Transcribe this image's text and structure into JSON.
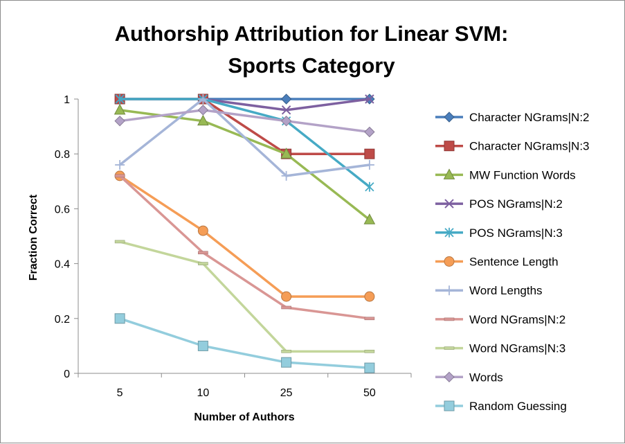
{
  "chart_data": {
    "type": "line",
    "title_lines": [
      "Authorship Attribution for Linear SVM:",
      "Sports Category"
    ],
    "xlabel": "Number of Authors",
    "ylabel": "Fraction Correct",
    "categories": [
      "5",
      "10",
      "25",
      "50"
    ],
    "ylim": [
      0,
      1
    ],
    "yticks": [
      0,
      0.2,
      0.4,
      0.6,
      0.8,
      1
    ],
    "ytick_labels": [
      "0",
      "0.2",
      "0.4",
      "0.6",
      "0.8",
      "1"
    ],
    "grid": false,
    "legend_position": "right",
    "series": [
      {
        "name": "Character NGrams|N:2",
        "values": [
          1,
          1,
          1,
          1
        ],
        "color": "#4a7ebb",
        "marker": "diamond"
      },
      {
        "name": "Character NGrams|N:3",
        "values": [
          1,
          1,
          0.8,
          0.8
        ],
        "color": "#be4b48",
        "marker": "square"
      },
      {
        "name": "MW Function Words",
        "values": [
          0.96,
          0.92,
          0.8,
          0.56
        ],
        "color": "#98b954",
        "marker": "triangle"
      },
      {
        "name": "POS NGrams|N:2",
        "values": [
          1,
          1,
          0.96,
          1
        ],
        "color": "#7d60a0",
        "marker": "x"
      },
      {
        "name": "POS NGrams|N:3",
        "values": [
          1,
          1,
          0.92,
          0.68
        ],
        "color": "#46aac5",
        "marker": "asterisk"
      },
      {
        "name": "Sentence Length",
        "values": [
          0.72,
          0.52,
          0.28,
          0.28
        ],
        "color": "#f59d56",
        "marker": "circle"
      },
      {
        "name": "Word Lengths",
        "values": [
          0.76,
          1,
          0.72,
          0.76
        ],
        "color": "#a5b5d8",
        "marker": "plus"
      },
      {
        "name": "Word NGrams|N:2",
        "values": [
          0.72,
          0.44,
          0.24,
          0.2
        ],
        "color": "#d99694",
        "marker": "dash"
      },
      {
        "name": "Word NGrams|N:3",
        "values": [
          0.48,
          0.4,
          0.08,
          0.08
        ],
        "color": "#c3d69b",
        "marker": "dash"
      },
      {
        "name": "Words",
        "values": [
          0.92,
          0.96,
          0.92,
          0.88
        ],
        "color": "#b3a2c7",
        "marker": "diamond"
      },
      {
        "name": "Random Guessing",
        "values": [
          0.2,
          0.1,
          0.04,
          0.02
        ],
        "color": "#93cddd",
        "marker": "square"
      }
    ]
  }
}
